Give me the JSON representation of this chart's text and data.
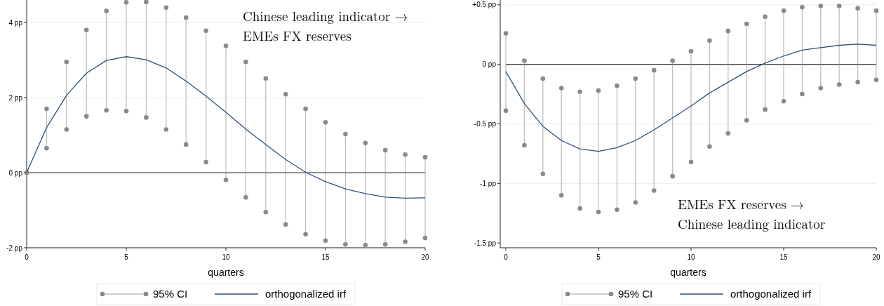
{
  "chart_data": [
    {
      "type": "line",
      "x": [
        0,
        1,
        2,
        3,
        4,
        5,
        6,
        7,
        8,
        9,
        10,
        11,
        12,
        13,
        14,
        15,
        16,
        17,
        18,
        19,
        20
      ],
      "xlabel": "quarters",
      "xlim": [
        0,
        20
      ],
      "xticks": [
        0,
        5,
        10,
        15,
        20
      ],
      "ylim": [
        -2,
        4.6
      ],
      "yticks": [
        {
          "value": -2,
          "label": "-2 pp"
        },
        {
          "value": 0,
          "label": "0 pp"
        },
        {
          "value": 2,
          "label": "2 pp"
        },
        {
          "value": 4,
          "label": "4 pp"
        }
      ],
      "grid": "y",
      "legend": "bottom",
      "ref_lines": [
        {
          "axis": "y",
          "value": 0,
          "color": "#333333"
        }
      ],
      "annotations": [
        "Chinese leading indicator →",
        "EMEs FX reserves"
      ],
      "series": [
        {
          "name": "95% CI",
          "type": "scatter",
          "marker": "circle",
          "color": "#8a8a8a",
          "values": [
            0,
            1.7,
            2.95,
            3.8,
            4.31,
            4.54,
            4.55,
            4.4,
            4.13,
            3.78,
            3.38,
            2.95,
            2.51,
            2.09,
            1.7,
            1.34,
            1.03,
            0.79,
            0.6,
            0.48,
            0.41
          ],
          "errors": [
            [
              0,
              0
            ],
            [
              0.65,
              1.7
            ],
            [
              1.15,
              2.95
            ],
            [
              1.5,
              3.8
            ],
            [
              1.66,
              4.31
            ],
            [
              1.64,
              4.54
            ],
            [
              1.47,
              4.55
            ],
            [
              1.15,
              4.4
            ],
            [
              0.75,
              4.13
            ],
            [
              0.28,
              3.78
            ],
            [
              -0.19,
              3.38
            ],
            [
              -0.66,
              2.95
            ],
            [
              -1.05,
              2.51
            ],
            [
              -1.38,
              2.09
            ],
            [
              -1.64,
              1.7
            ],
            [
              -1.81,
              1.34
            ],
            [
              -1.91,
              1.03
            ],
            [
              -1.93,
              0.79
            ],
            [
              -1.91,
              0.6
            ],
            [
              -1.84,
              0.48
            ],
            [
              -1.74,
              0.41
            ]
          ]
        },
        {
          "type": "scatter",
          "marker": "circle",
          "color": "#8a8a8a",
          "values": [
            0,
            0.65,
            1.15,
            1.5,
            1.66,
            1.64,
            1.47,
            1.15,
            0.75,
            0.28,
            -0.19,
            -0.66,
            -1.05,
            -1.38,
            -1.64,
            -1.81,
            -1.91,
            -1.93,
            -1.91,
            -1.84,
            -1.74
          ]
        },
        {
          "name": "orthogonalized irf",
          "color": "#2b5279",
          "values": [
            0,
            1.2,
            2.06,
            2.65,
            2.99,
            3.09,
            3.01,
            2.79,
            2.44,
            2.04,
            1.61,
            1.16,
            0.75,
            0.35,
            0.01,
            -0.24,
            -0.43,
            -0.56,
            -0.65,
            -0.68,
            -0.67
          ]
        }
      ]
    },
    {
      "type": "line",
      "x": [
        0,
        1,
        2,
        3,
        4,
        5,
        6,
        7,
        8,
        9,
        10,
        11,
        12,
        13,
        14,
        15,
        16,
        17,
        18,
        19,
        20
      ],
      "xlabel": "quarters",
      "xlim": [
        0,
        20
      ],
      "xticks": [
        0,
        5,
        10,
        15,
        20
      ],
      "ylim": [
        -1.54,
        0.54
      ],
      "yticks": [
        {
          "value": -1.5,
          "label": "-1.5 pp"
        },
        {
          "value": -1,
          "label": "-1 pp"
        },
        {
          "value": -0.5,
          "label": "-0.5 pp"
        },
        {
          "value": 0,
          "label": "0 pp"
        },
        {
          "value": 0.5,
          "label": "+0.5 pp"
        }
      ],
      "grid": "y",
      "legend": "bottom",
      "ref_lines": [
        {
          "axis": "y",
          "value": 0,
          "color": "#333333"
        }
      ],
      "annotations": [
        "EMEs FX reserves →",
        "Chinese leading indicator"
      ],
      "series": [
        {
          "name": "95% CI",
          "type": "scatter",
          "marker": "circle",
          "color": "#8a8a8a",
          "values": [
            0.26,
            0.03,
            -0.12,
            -0.2,
            -0.23,
            -0.22,
            -0.18,
            -0.12,
            -0.05,
            0.03,
            0.11,
            0.2,
            0.28,
            0.34,
            0.4,
            0.45,
            0.48,
            0.49,
            0.49,
            0.47,
            0.45
          ],
          "errors": [
            [
              -0.39,
              0.26
            ],
            [
              -0.68,
              0.03
            ],
            [
              -0.92,
              -0.12
            ],
            [
              -1.1,
              -0.2
            ],
            [
              -1.21,
              -0.23
            ],
            [
              -1.24,
              -0.22
            ],
            [
              -1.22,
              -0.18
            ],
            [
              -1.16,
              -0.12
            ],
            [
              -1.06,
              -0.05
            ],
            [
              -0.94,
              0.03
            ],
            [
              -0.82,
              0.11
            ],
            [
              -0.69,
              0.2
            ],
            [
              -0.58,
              0.28
            ],
            [
              -0.47,
              0.34
            ],
            [
              -0.38,
              0.4
            ],
            [
              -0.31,
              0.45
            ],
            [
              -0.25,
              0.48
            ],
            [
              -0.2,
              0.49
            ],
            [
              -0.17,
              0.49
            ],
            [
              -0.15,
              0.47
            ],
            [
              -0.13,
              0.45
            ]
          ]
        },
        {
          "type": "scatter",
          "marker": "circle",
          "color": "#8a8a8a",
          "values": [
            -0.39,
            -0.68,
            -0.92,
            -1.1,
            -1.21,
            -1.24,
            -1.22,
            -1.16,
            -1.06,
            -0.94,
            -0.82,
            -0.69,
            -0.58,
            -0.47,
            -0.38,
            -0.31,
            -0.25,
            -0.2,
            -0.17,
            -0.15,
            -0.13
          ]
        },
        {
          "name": "orthogonalized irf",
          "color": "#2b5279",
          "values": [
            -0.06,
            -0.33,
            -0.52,
            -0.64,
            -0.71,
            -0.73,
            -0.7,
            -0.64,
            -0.55,
            -0.45,
            -0.35,
            -0.24,
            -0.15,
            -0.06,
            0.01,
            0.07,
            0.12,
            0.14,
            0.16,
            0.17,
            0.16
          ]
        }
      ]
    }
  ]
}
